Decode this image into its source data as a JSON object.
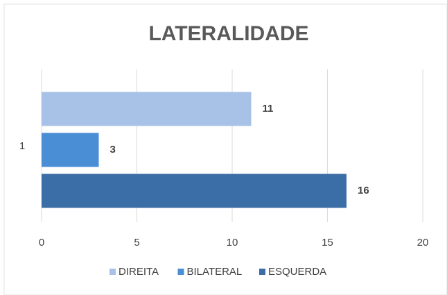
{
  "chart_data": {
    "type": "bar",
    "orientation": "horizontal",
    "title": "LATERALIDADE",
    "categories": [
      "1"
    ],
    "series": [
      {
        "name": "DIREITA",
        "color": "#a7c2e6",
        "values": [
          11
        ]
      },
      {
        "name": "BILATERAL",
        "color": "#4a8ed6",
        "values": [
          3
        ]
      },
      {
        "name": "ESQUERDA",
        "color": "#3b6ea6",
        "values": [
          16
        ]
      }
    ],
    "xlim": [
      0,
      20
    ],
    "xticks": [
      0,
      5,
      10,
      15,
      20
    ],
    "grid": true,
    "legend": "bottom"
  }
}
